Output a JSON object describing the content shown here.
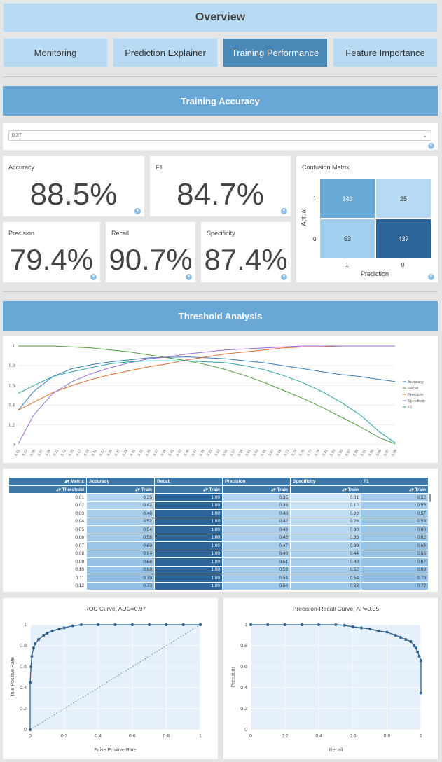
{
  "header": {
    "title": "Overview"
  },
  "nav": {
    "tabs": [
      {
        "label": "Monitoring"
      },
      {
        "label": "Prediction Explainer"
      },
      {
        "label": "Training Performance"
      },
      {
        "label": "Feature Importance"
      }
    ]
  },
  "accuracy_section": {
    "title": "Training Accuracy"
  },
  "threshold_select": {
    "value": "0.37"
  },
  "metrics": {
    "accuracy": {
      "label": "Accuracy",
      "value": "88.5%"
    },
    "f1": {
      "label": "F1",
      "value": "84.7%"
    },
    "precision": {
      "label": "Precision",
      "value": "79.4%"
    },
    "recall": {
      "label": "Recall",
      "value": "90.7%"
    },
    "specificity": {
      "label": "Specificity",
      "value": "87.4%"
    }
  },
  "confusion": {
    "title": "Confusion Matrix",
    "ylabel": "Actual",
    "xlabel": "Prediction",
    "row_labels": [
      "1",
      "0"
    ],
    "col_labels": [
      "1",
      "0"
    ],
    "cells": [
      "243",
      "25",
      "63",
      "437"
    ],
    "colors": [
      "#6aaad8",
      "#b8dcf3",
      "#a4d0ef",
      "#2e6599"
    ]
  },
  "threshold_section": {
    "title": "Threshold Analysis"
  },
  "threshold_chart": {
    "yticks": [
      "0",
      "0.2",
      "0.4",
      "0.6",
      "0.8",
      "1"
    ],
    "legend": [
      "Accuracy",
      "Recall",
      "Precision",
      "Specificity",
      "F1"
    ],
    "colors": {
      "Accuracy": "#3a7bb8",
      "Recall": "#4f9a3d",
      "Precision": "#e06b2d",
      "Specificity": "#9b6bd6",
      "F1": "#2aa0a8"
    }
  },
  "table": {
    "header_metric": "Metric",
    "header_threshold": "Threshold",
    "columns": [
      "Accuracy",
      "Recall",
      "Precision",
      "Specificity",
      "F1"
    ],
    "sub": "Train",
    "rows": [
      [
        "0.01",
        "0.35",
        "1.00",
        "0.35",
        "0.01",
        "0.52"
      ],
      [
        "0.02",
        "0.42",
        "1.00",
        "0.38",
        "0.12",
        "0.55"
      ],
      [
        "0.03",
        "0.48",
        "1.00",
        "0.40",
        "0.20",
        "0.57"
      ],
      [
        "0.04",
        "0.52",
        "1.00",
        "0.42",
        "0.26",
        "0.59"
      ],
      [
        "0.05",
        "0.54",
        "1.00",
        "0.43",
        "0.30",
        "0.60"
      ],
      [
        "0.06",
        "0.58",
        "1.00",
        "0.45",
        "0.35",
        "0.62"
      ],
      [
        "0.07",
        "0.60",
        "1.00",
        "0.47",
        "0.39",
        "0.64"
      ],
      [
        "0.08",
        "0.64",
        "1.00",
        "0.49",
        "0.44",
        "0.66"
      ],
      [
        "0.09",
        "0.66",
        "1.00",
        "0.51",
        "0.48",
        "0.67"
      ],
      [
        "0.10",
        "0.69",
        "1.00",
        "0.53",
        "0.52",
        "0.69"
      ],
      [
        "0.11",
        "0.70",
        "1.00",
        "0.54",
        "0.54",
        "0.70"
      ],
      [
        "0.12",
        "0.73",
        "1.00",
        "0.56",
        "0.58",
        "0.72"
      ]
    ]
  },
  "chart_data": [
    {
      "type": "line",
      "xlabel": "",
      "ylabel": "",
      "ylim": [
        0,
        1
      ],
      "x": [
        0.01,
        0.05,
        0.1,
        0.15,
        0.2,
        0.25,
        0.3,
        0.35,
        0.4,
        0.45,
        0.5,
        0.55,
        0.6,
        0.65,
        0.7,
        0.75,
        0.8,
        0.85,
        0.9,
        0.95,
        0.99
      ],
      "series": [
        {
          "name": "Accuracy",
          "values": [
            0.35,
            0.54,
            0.69,
            0.77,
            0.81,
            0.84,
            0.86,
            0.88,
            0.885,
            0.89,
            0.88,
            0.87,
            0.85,
            0.83,
            0.8,
            0.77,
            0.74,
            0.71,
            0.69,
            0.66,
            0.64
          ]
        },
        {
          "name": "Recall",
          "values": [
            1.0,
            1.0,
            1.0,
            0.99,
            0.98,
            0.96,
            0.94,
            0.91,
            0.88,
            0.85,
            0.81,
            0.76,
            0.7,
            0.63,
            0.55,
            0.47,
            0.38,
            0.28,
            0.18,
            0.07,
            0.01
          ]
        },
        {
          "name": "Precision",
          "values": [
            0.35,
            0.43,
            0.53,
            0.6,
            0.66,
            0.71,
            0.75,
            0.79,
            0.82,
            0.86,
            0.89,
            0.92,
            0.94,
            0.96,
            0.98,
            0.99,
            0.99,
            1.0,
            1.0,
            1.0,
            1.0
          ]
        },
        {
          "name": "Specificity",
          "values": [
            0.01,
            0.3,
            0.52,
            0.64,
            0.72,
            0.78,
            0.83,
            0.87,
            0.89,
            0.92,
            0.94,
            0.96,
            0.97,
            0.98,
            0.99,
            1.0,
            1.0,
            1.0,
            1.0,
            1.0,
            1.0
          ]
        },
        {
          "name": "F1",
          "values": [
            0.52,
            0.6,
            0.69,
            0.74,
            0.78,
            0.82,
            0.84,
            0.85,
            0.85,
            0.85,
            0.84,
            0.83,
            0.8,
            0.76,
            0.7,
            0.63,
            0.54,
            0.43,
            0.3,
            0.13,
            0.02
          ]
        }
      ]
    },
    {
      "type": "line",
      "title": "ROC Curve, AUC=0.97",
      "xlabel": "False Positive Rate",
      "ylabel": "True Positive Rate",
      "xlim": [
        0,
        1
      ],
      "ylim": [
        0,
        1
      ],
      "xticks": [
        "0",
        "0.2",
        "0.4",
        "0.6",
        "0.8",
        "1"
      ],
      "yticks": [
        "0",
        "0.2",
        "0.4",
        "0.6",
        "0.8",
        "1"
      ],
      "x": [
        0,
        0,
        0.005,
        0.01,
        0.02,
        0.03,
        0.05,
        0.08,
        0.1,
        0.13,
        0.17,
        0.2,
        0.25,
        0.3,
        0.4,
        0.5,
        0.6,
        0.7,
        0.8,
        0.9,
        1.0
      ],
      "series": [
        {
          "name": "",
          "values": [
            0,
            0.45,
            0.6,
            0.7,
            0.78,
            0.82,
            0.86,
            0.9,
            0.92,
            0.94,
            0.96,
            0.97,
            0.99,
            1.0,
            1.0,
            1.0,
            1.0,
            1.0,
            1.0,
            1.0,
            1.0
          ]
        }
      ]
    },
    {
      "type": "line",
      "title": "Precision-Recall Curve, AP=0.95",
      "xlabel": "Recall",
      "ylabel": "Precision",
      "xlim": [
        0,
        1
      ],
      "ylim": [
        0,
        1
      ],
      "xticks": [
        "0",
        "0.2",
        "0.4",
        "0.6",
        "0.8",
        "1"
      ],
      "yticks": [
        "0",
        "0.2",
        "0.4",
        "0.6",
        "0.8",
        "1"
      ],
      "x": [
        0,
        0.1,
        0.2,
        0.3,
        0.4,
        0.5,
        0.55,
        0.6,
        0.65,
        0.7,
        0.75,
        0.8,
        0.85,
        0.88,
        0.91,
        0.94,
        0.96,
        0.97,
        0.98,
        0.99,
        1.0,
        1.0
      ],
      "series": [
        {
          "name": "",
          "values": [
            1.0,
            1.0,
            1.0,
            1.0,
            1.0,
            1.0,
            0.995,
            0.98,
            0.97,
            0.96,
            0.94,
            0.93,
            0.9,
            0.88,
            0.86,
            0.84,
            0.8,
            0.78,
            0.74,
            0.7,
            0.66,
            0.35
          ]
        }
      ]
    }
  ]
}
